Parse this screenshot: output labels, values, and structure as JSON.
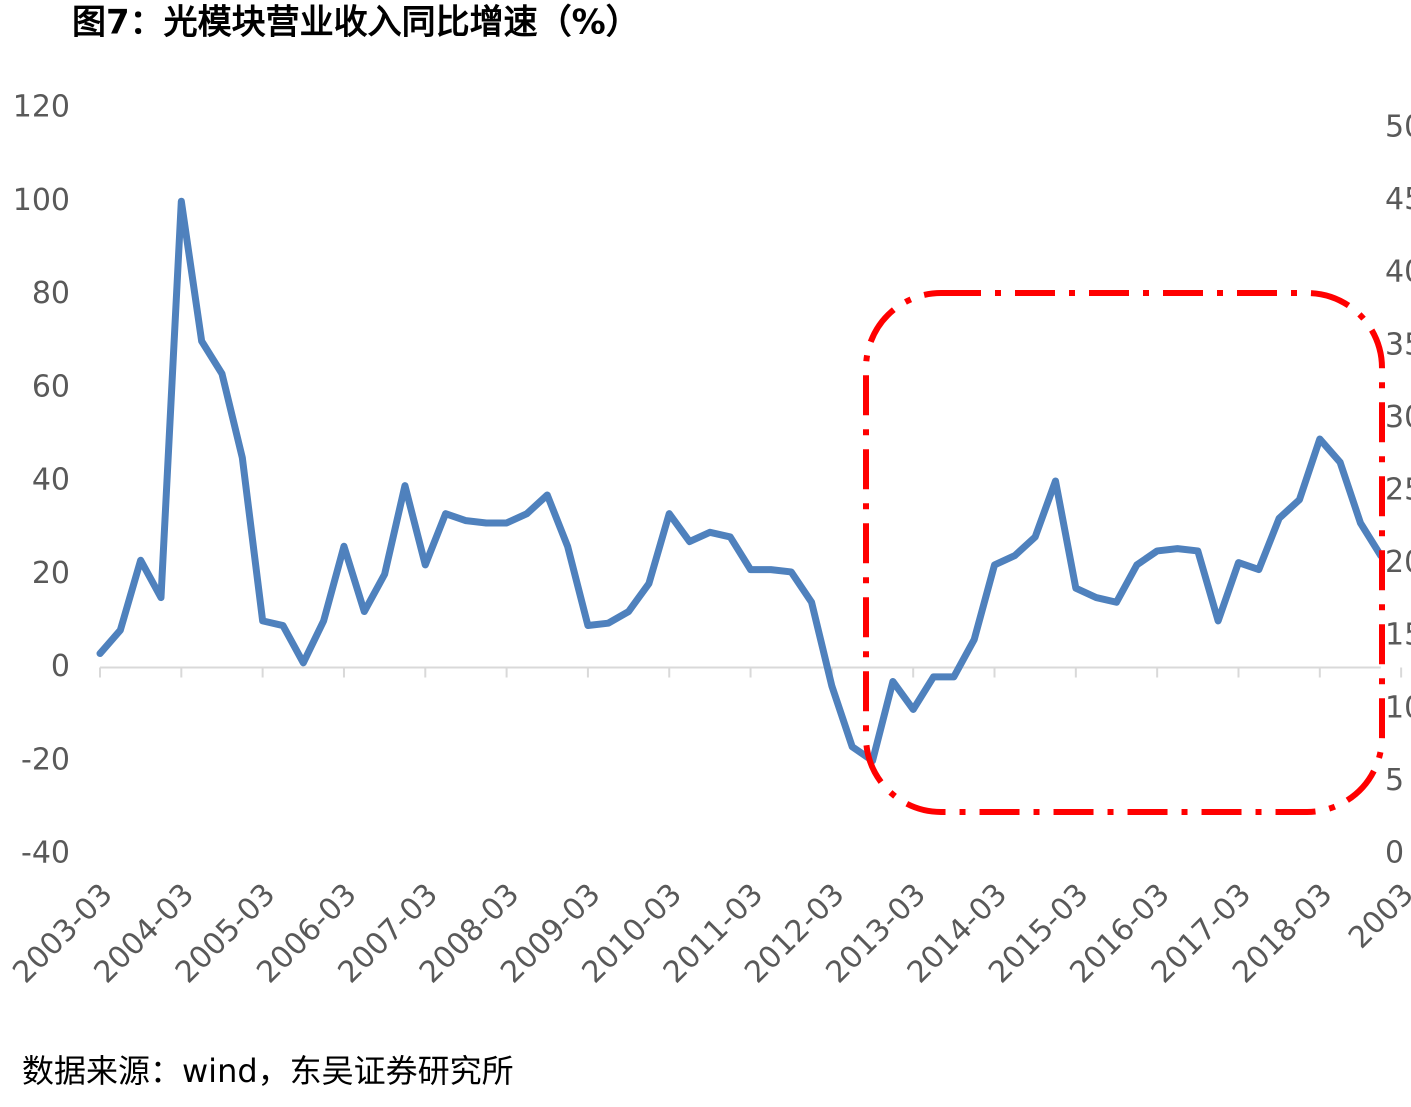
{
  "chart_data": {
    "type": "line",
    "title": "图7：光模块营业收入同比增速（%）",
    "source": "数据来源：wind，东吴证券研究所",
    "categories": [
      "2003-03",
      null,
      null,
      null,
      "2004-03",
      null,
      null,
      null,
      "2005-03",
      null,
      null,
      null,
      "2006-03",
      null,
      null,
      null,
      "2007-03",
      null,
      null,
      null,
      "2008-03",
      null,
      null,
      null,
      "2009-03",
      null,
      null,
      null,
      "2010-03",
      null,
      null,
      null,
      "2011-03",
      null,
      null,
      null,
      "2012-03",
      null,
      null,
      null,
      "2013-03",
      null,
      null,
      null,
      "2014-03",
      null,
      null,
      null,
      "2015-03",
      null,
      null,
      null,
      "2016-03",
      null,
      null,
      null,
      "2017-03",
      null,
      null,
      null,
      "2018-03",
      null,
      null,
      null,
      "2003"
    ],
    "series": [
      {
        "color": "#4f81bd",
        "values": [
          3,
          8,
          23,
          15,
          100,
          70,
          63,
          45,
          10,
          9,
          1,
          10,
          26,
          12,
          20,
          39,
          22,
          33,
          31.5,
          31,
          31,
          33,
          37,
          26,
          9,
          9.5,
          12,
          18,
          33,
          27,
          29,
          28,
          21,
          21,
          20.5,
          14,
          -4,
          -17,
          -20,
          -3,
          -9,
          -2,
          -2,
          6,
          22,
          24,
          28,
          40,
          17,
          15,
          14,
          22,
          25,
          25.5,
          25,
          10,
          22.5,
          21,
          32,
          36,
          49,
          44,
          31,
          24,
          null
        ]
      }
    ],
    "ylim": [
      -40,
      120
    ],
    "yticks": [
      -40,
      -20,
      0,
      20,
      40,
      60,
      80,
      100,
      120
    ],
    "y2lim": [
      0,
      50
    ],
    "y2ticks": [
      0,
      5,
      10,
      15,
      20,
      25,
      30,
      35,
      40,
      45,
      50
    ]
  }
}
